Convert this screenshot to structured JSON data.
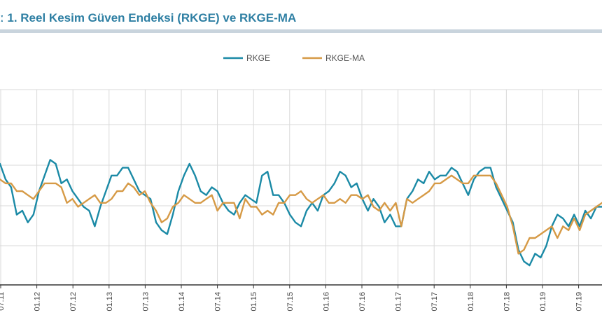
{
  "header": {
    "title": "ː 1. Reel Kesim Güven Endeksi (RKGE) ve RKGE-MA"
  },
  "colors": {
    "rkge": "#1b8aa6",
    "rkge_ma": "#d69a46",
    "grid": "#d9d9d9",
    "axis": "#333333",
    "title": "#2e7fa3"
  },
  "chart_data": {
    "type": "line",
    "title": "ː 1. Reel Kesim Güven Endeksi (RKGE) ve RKGE-MA",
    "xlabel": "",
    "ylabel": "",
    "x_tick_labels": [
      "07.11",
      "01.12",
      "07.12",
      "01.13",
      "07.13",
      "01.14",
      "07.14",
      "01.15",
      "07.15",
      "01.16",
      "07.16",
      "01.17",
      "07.17",
      "01.18",
      "07.18",
      "01.19",
      "07.19"
    ],
    "y_tick_labels": [],
    "ylim": [
      80,
      130
    ],
    "grid": true,
    "legend_position": "top-center",
    "series": [
      {
        "name": "RKGE",
        "color": "#1b8aa6",
        "values": [
          111,
          107,
          105,
          98,
          99,
          96,
          98,
          104,
          108,
          112,
          111,
          106,
          107,
          104,
          102,
          100,
          99,
          95,
          100,
          104,
          108,
          108,
          110,
          110,
          107,
          104,
          103,
          102,
          96,
          94,
          93,
          98,
          104,
          108,
          111,
          108,
          104,
          103,
          105,
          104,
          101,
          99,
          98,
          101,
          103,
          102,
          101,
          108,
          109,
          103,
          103,
          101,
          98,
          96,
          95,
          99,
          101,
          99,
          103,
          104,
          106,
          109,
          108,
          105,
          106,
          102,
          99,
          102,
          100,
          96,
          98,
          95,
          95,
          102,
          104,
          107,
          106,
          109,
          107,
          108,
          108,
          110,
          109,
          106,
          103,
          107,
          109,
          110,
          110,
          105,
          102,
          99,
          96,
          89,
          86,
          85,
          88,
          87,
          90,
          95,
          98,
          97,
          95,
          98,
          95,
          99,
          97,
          100,
          100
        ]
      },
      {
        "name": "RKGE-MA",
        "color": "#d69a46",
        "values": [
          107,
          106,
          106,
          104,
          104,
          103,
          102,
          104,
          106,
          106,
          106,
          105,
          101,
          102,
          100,
          101,
          102,
          103,
          101,
          101,
          102,
          104,
          104,
          106,
          105,
          103,
          104,
          101,
          99,
          96,
          97,
          100,
          101,
          103,
          102,
          101,
          101,
          102,
          103,
          99,
          101,
          101,
          101,
          97,
          102,
          100,
          100,
          98,
          99,
          98,
          101,
          101,
          103,
          103,
          104,
          102,
          101,
          102,
          103,
          101,
          101,
          102,
          101,
          103,
          103,
          102,
          103,
          100,
          99,
          101,
          99,
          101,
          95,
          102,
          101,
          102,
          103,
          104,
          106,
          106,
          107,
          108,
          107,
          106,
          106,
          108,
          108,
          108,
          108,
          106,
          103,
          100,
          95,
          88,
          89,
          92,
          92,
          93,
          94,
          95,
          92,
          95,
          94,
          97,
          94,
          98,
          99,
          100,
          101
        ]
      }
    ]
  }
}
